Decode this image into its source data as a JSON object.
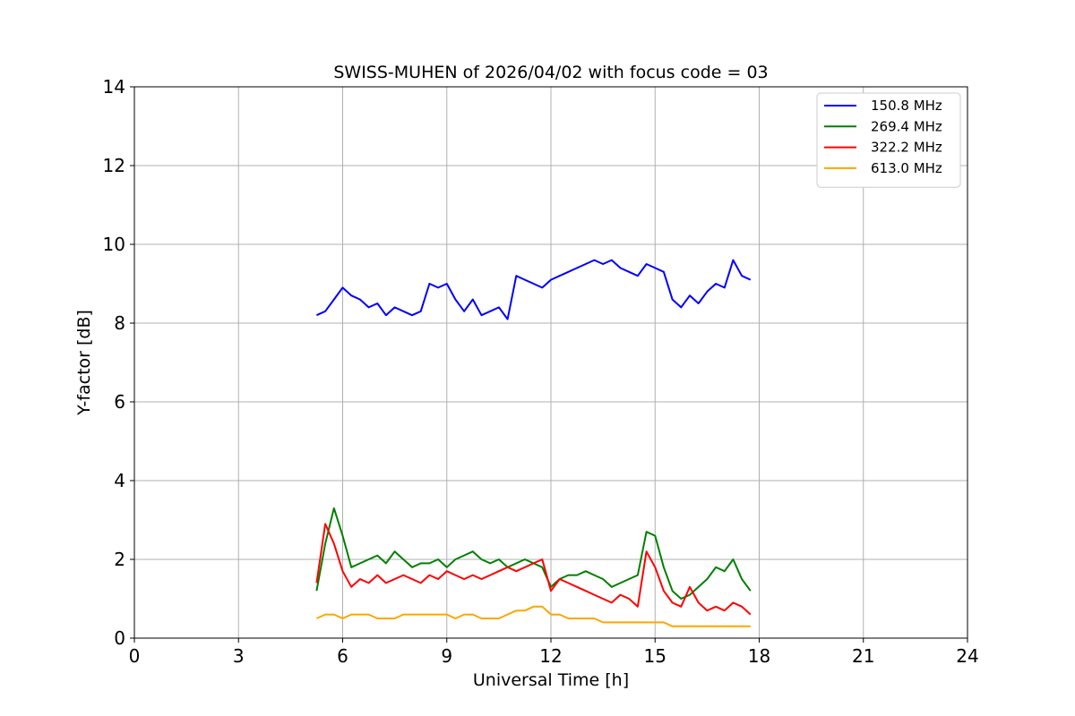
{
  "chart_data": {
    "type": "line",
    "title": "SWISS-MUHEN of 2026/04/02 with focus code = 03",
    "xlabel": "Universal Time [h]",
    "ylabel": "Y-factor [dB]",
    "xlim": [
      0,
      24
    ],
    "ylim": [
      0,
      14
    ],
    "xticks": [
      0,
      3,
      6,
      9,
      12,
      15,
      18,
      21,
      24
    ],
    "yticks": [
      0,
      2,
      4,
      6,
      8,
      10,
      12,
      14
    ],
    "grid": true,
    "legend_position": "top-right",
    "series": [
      {
        "name": "150.8 MHz",
        "color": "#0000ff",
        "x": [
          5.25,
          5.5,
          5.75,
          6.0,
          6.25,
          6.5,
          6.75,
          7.0,
          7.25,
          7.5,
          7.75,
          8.0,
          8.25,
          8.5,
          8.75,
          9.0,
          9.25,
          9.5,
          9.75,
          10.0,
          10.25,
          10.5,
          10.75,
          11.0,
          11.25,
          11.5,
          11.75,
          12.0,
          12.25,
          12.5,
          12.75,
          13.0,
          13.25,
          13.5,
          13.75,
          14.0,
          14.25,
          14.5,
          14.75,
          15.0,
          15.25,
          15.5,
          15.75,
          16.0,
          16.25,
          16.5,
          16.75,
          17.0,
          17.25,
          17.5,
          17.75
        ],
        "y": [
          8.2,
          8.3,
          8.6,
          8.9,
          8.7,
          8.6,
          8.4,
          8.5,
          8.2,
          8.4,
          8.3,
          8.2,
          8.3,
          9.0,
          8.9,
          9.0,
          8.6,
          8.3,
          8.6,
          8.2,
          8.3,
          8.4,
          8.1,
          9.2,
          9.1,
          9.0,
          8.9,
          9.1,
          9.2,
          9.3,
          9.4,
          9.5,
          9.6,
          9.5,
          9.6,
          9.4,
          9.3,
          9.2,
          9.5,
          9.4,
          9.3,
          8.6,
          8.4,
          8.7,
          8.5,
          8.8,
          9.0,
          8.9,
          9.6,
          9.2,
          9.1
        ]
      },
      {
        "name": "269.4 MHz",
        "color": "#008000",
        "x": [
          5.25,
          5.5,
          5.75,
          6.0,
          6.25,
          6.5,
          6.75,
          7.0,
          7.25,
          7.5,
          7.75,
          8.0,
          8.25,
          8.5,
          8.75,
          9.0,
          9.25,
          9.5,
          9.75,
          10.0,
          10.25,
          10.5,
          10.75,
          11.0,
          11.25,
          11.5,
          11.75,
          12.0,
          12.25,
          12.5,
          12.75,
          13.0,
          13.25,
          13.5,
          13.75,
          14.0,
          14.25,
          14.5,
          14.75,
          15.0,
          15.25,
          15.5,
          15.75,
          16.0,
          16.25,
          16.5,
          16.75,
          17.0,
          17.25,
          17.5,
          17.75
        ],
        "y": [
          1.2,
          2.4,
          3.3,
          2.6,
          1.8,
          1.9,
          2.0,
          2.1,
          1.9,
          2.2,
          2.0,
          1.8,
          1.9,
          1.9,
          2.0,
          1.8,
          2.0,
          2.1,
          2.2,
          2.0,
          1.9,
          2.0,
          1.8,
          1.9,
          2.0,
          1.9,
          1.8,
          1.3,
          1.5,
          1.6,
          1.6,
          1.7,
          1.6,
          1.5,
          1.3,
          1.4,
          1.5,
          1.6,
          2.7,
          2.6,
          1.8,
          1.2,
          1.0,
          1.1,
          1.3,
          1.5,
          1.8,
          1.7,
          2.0,
          1.5,
          1.2
        ]
      },
      {
        "name": "322.2 MHz",
        "color": "#ff0000",
        "x": [
          5.25,
          5.5,
          5.75,
          6.0,
          6.25,
          6.5,
          6.75,
          7.0,
          7.25,
          7.5,
          7.75,
          8.0,
          8.25,
          8.5,
          8.75,
          9.0,
          9.25,
          9.5,
          9.75,
          10.0,
          10.25,
          10.5,
          10.75,
          11.0,
          11.25,
          11.5,
          11.75,
          12.0,
          12.25,
          12.5,
          12.75,
          13.0,
          13.25,
          13.5,
          13.75,
          14.0,
          14.25,
          14.5,
          14.75,
          15.0,
          15.25,
          15.5,
          15.75,
          16.0,
          16.25,
          16.5,
          16.75,
          17.0,
          17.25,
          17.5,
          17.75
        ],
        "y": [
          1.4,
          2.9,
          2.4,
          1.7,
          1.3,
          1.5,
          1.4,
          1.6,
          1.4,
          1.5,
          1.6,
          1.5,
          1.4,
          1.6,
          1.5,
          1.7,
          1.6,
          1.5,
          1.6,
          1.5,
          1.6,
          1.7,
          1.8,
          1.7,
          1.8,
          1.9,
          2.0,
          1.2,
          1.5,
          1.4,
          1.3,
          1.2,
          1.1,
          1.0,
          0.9,
          1.1,
          1.0,
          0.8,
          2.2,
          1.8,
          1.2,
          0.9,
          0.8,
          1.3,
          0.9,
          0.7,
          0.8,
          0.7,
          0.9,
          0.8,
          0.6
        ]
      },
      {
        "name": "613.0 MHz",
        "color": "#ffa500",
        "x": [
          5.25,
          5.5,
          5.75,
          6.0,
          6.25,
          6.5,
          6.75,
          7.0,
          7.25,
          7.5,
          7.75,
          8.0,
          8.25,
          8.5,
          8.75,
          9.0,
          9.25,
          9.5,
          9.75,
          10.0,
          10.25,
          10.5,
          10.75,
          11.0,
          11.25,
          11.5,
          11.75,
          12.0,
          12.25,
          12.5,
          12.75,
          13.0,
          13.25,
          13.5,
          13.75,
          14.0,
          14.25,
          14.5,
          14.75,
          15.0,
          15.25,
          15.5,
          15.75,
          16.0,
          16.25,
          16.5,
          16.75,
          17.0,
          17.25,
          17.5,
          17.75
        ],
        "y": [
          0.5,
          0.6,
          0.6,
          0.5,
          0.6,
          0.6,
          0.6,
          0.5,
          0.5,
          0.5,
          0.6,
          0.6,
          0.6,
          0.6,
          0.6,
          0.6,
          0.5,
          0.6,
          0.6,
          0.5,
          0.5,
          0.5,
          0.6,
          0.7,
          0.7,
          0.8,
          0.8,
          0.6,
          0.6,
          0.5,
          0.5,
          0.5,
          0.5,
          0.4,
          0.4,
          0.4,
          0.4,
          0.4,
          0.4,
          0.4,
          0.4,
          0.3,
          0.3,
          0.3,
          0.3,
          0.3,
          0.3,
          0.3,
          0.3,
          0.3,
          0.3
        ]
      }
    ]
  }
}
